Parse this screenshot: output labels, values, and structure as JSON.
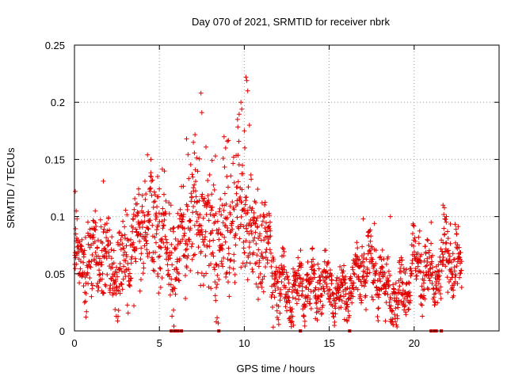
{
  "chart_data": {
    "type": "scatter",
    "title": "Day 070 of 2021, SRMTID for receiver nbrk",
    "xlabel": "GPS time / hours",
    "ylabel": "SRMTID / TECUs",
    "xlim": [
      0,
      25
    ],
    "ylim": [
      0,
      0.25
    ],
    "x_ticks": [
      0,
      5,
      10,
      15,
      20
    ],
    "x_tick_labels": [
      "0",
      "5",
      "10",
      "15",
      "20"
    ],
    "y_ticks": [
      0,
      0.05,
      0.1,
      0.15,
      0.2,
      0.25
    ],
    "y_tick_labels": [
      "0",
      "0.05",
      "0.1",
      "0.15",
      "0.2",
      "0.25"
    ],
    "grid": true,
    "marker": "+",
    "color": "#e00000",
    "series": [
      {
        "name": "SRMTID",
        "trend": [
          [
            0.0,
            0.065
          ],
          [
            0.5,
            0.058
          ],
          [
            1.0,
            0.068
          ],
          [
            1.5,
            0.072
          ],
          [
            2.0,
            0.062
          ],
          [
            2.5,
            0.045
          ],
          [
            3.0,
            0.062
          ],
          [
            3.5,
            0.075
          ],
          [
            4.0,
            0.088
          ],
          [
            4.5,
            0.098
          ],
          [
            5.0,
            0.095
          ],
          [
            5.5,
            0.065
          ],
          [
            6.0,
            0.06
          ],
          [
            6.5,
            0.09
          ],
          [
            7.0,
            0.105
          ],
          [
            7.5,
            0.098
          ],
          [
            8.0,
            0.082
          ],
          [
            8.5,
            0.075
          ],
          [
            9.0,
            0.085
          ],
          [
            9.5,
            0.11
          ],
          [
            10.0,
            0.105
          ],
          [
            10.5,
            0.088
          ],
          [
            11.0,
            0.08
          ],
          [
            11.5,
            0.065
          ],
          [
            12.0,
            0.042
          ],
          [
            12.5,
            0.036
          ],
          [
            13.0,
            0.035
          ],
          [
            13.5,
            0.042
          ],
          [
            14.0,
            0.038
          ],
          [
            14.5,
            0.042
          ],
          [
            15.0,
            0.038
          ],
          [
            15.5,
            0.032
          ],
          [
            16.0,
            0.036
          ],
          [
            16.5,
            0.048
          ],
          [
            17.0,
            0.058
          ],
          [
            17.5,
            0.06
          ],
          [
            18.0,
            0.045
          ],
          [
            18.5,
            0.03
          ],
          [
            19.0,
            0.03
          ],
          [
            19.5,
            0.042
          ],
          [
            20.0,
            0.06
          ],
          [
            20.5,
            0.058
          ],
          [
            21.0,
            0.042
          ],
          [
            21.5,
            0.05
          ],
          [
            22.0,
            0.07
          ],
          [
            22.5,
            0.055
          ],
          [
            22.8,
            0.052
          ]
        ],
        "scatter_spread": [
          [
            0.0,
            0.014
          ],
          [
            4.0,
            0.02
          ],
          [
            5.0,
            0.022
          ],
          [
            6.5,
            0.025
          ],
          [
            9.5,
            0.03
          ],
          [
            10.5,
            0.025
          ],
          [
            12.0,
            0.012
          ],
          [
            16.0,
            0.01
          ],
          [
            17.0,
            0.014
          ],
          [
            19.0,
            0.012
          ],
          [
            20.0,
            0.012
          ],
          [
            22.0,
            0.014
          ],
          [
            22.8,
            0.012
          ]
        ],
        "outliers": [
          [
            0.05,
            0.122
          ],
          [
            0.1,
            0.105
          ],
          [
            1.7,
            0.131
          ],
          [
            4.3,
            0.154
          ],
          [
            4.5,
            0.15
          ],
          [
            4.9,
            0.135
          ],
          [
            6.6,
            0.168
          ],
          [
            7.0,
            0.165
          ],
          [
            7.45,
            0.208
          ],
          [
            7.5,
            0.191
          ],
          [
            8.3,
            0.153
          ],
          [
            8.9,
            0.16
          ],
          [
            9.0,
            0.166
          ],
          [
            9.6,
            0.185
          ],
          [
            9.8,
            0.2
          ],
          [
            9.85,
            0.194
          ],
          [
            10.1,
            0.222
          ],
          [
            10.15,
            0.219
          ],
          [
            10.2,
            0.21
          ],
          [
            10.3,
            0.18
          ],
          [
            10.0,
            0.175
          ],
          [
            18.6,
            0.1
          ],
          [
            17.0,
            0.098
          ],
          [
            21.7,
            0.11
          ],
          [
            21.9,
            0.1
          ],
          [
            21.0,
            0.095
          ],
          [
            18.7,
            0.008
          ],
          [
            12.9,
            0.005
          ],
          [
            15.9,
            0.01
          ],
          [
            2.6,
            0.018
          ],
          [
            3.5,
            0.022
          ],
          [
            8.5,
            0.045
          ],
          [
            1.0,
            0.03
          ]
        ],
        "n_points": 1800,
        "x_range": [
          0.0,
          22.8
        ]
      }
    ],
    "baseline_markers": [
      5.7,
      5.9,
      6.0,
      6.1,
      6.3,
      8.5,
      13.3,
      16.2,
      21.0,
      21.2,
      21.3,
      21.6
    ]
  }
}
